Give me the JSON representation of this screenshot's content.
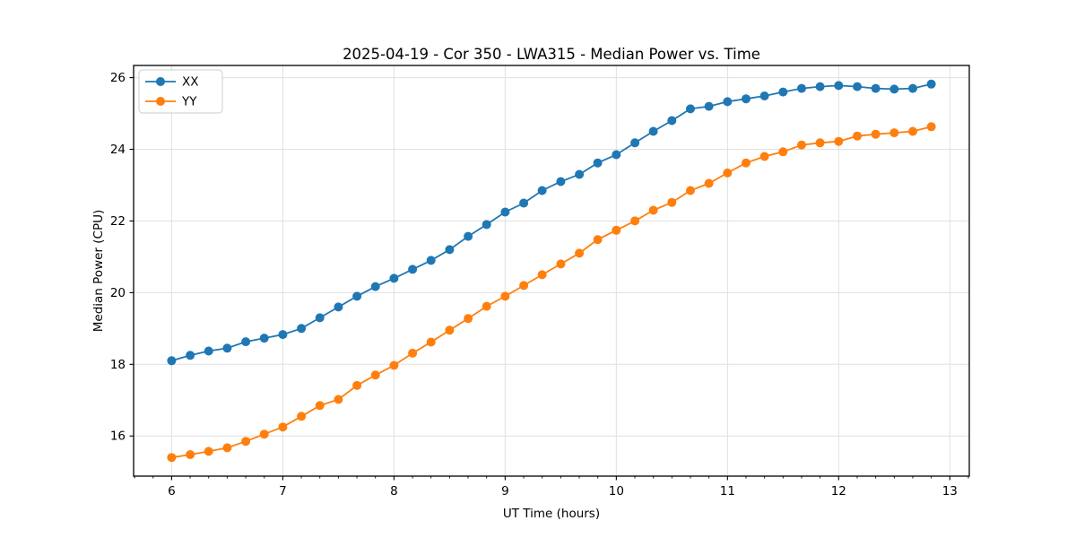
{
  "figure": {
    "background": "#ffffff",
    "plot_background": "#ffffff",
    "spine_color": "#000000",
    "grid_color": "#e0e0e0"
  },
  "chart_data": {
    "type": "line",
    "title": "2025-04-19 - Cor 350 - LWA315 - Median Power vs. Time",
    "xlabel": "UT Time (hours)",
    "ylabel": "Median Power (CPU)",
    "xlim": [
      5.658,
      13.175
    ],
    "ylim": [
      14.88,
      26.34
    ],
    "x_major_ticks": [
      6,
      7,
      8,
      9,
      10,
      11,
      12,
      13
    ],
    "y_major_ticks": [
      16,
      18,
      20,
      22,
      24,
      26
    ],
    "x_minor_step": 0.166667,
    "grid": true,
    "legend_position": "upper-left",
    "marker": "circle",
    "x": [
      6.0,
      6.167,
      6.333,
      6.5,
      6.667,
      6.833,
      7.0,
      7.167,
      7.333,
      7.5,
      7.667,
      7.833,
      8.0,
      8.167,
      8.333,
      8.5,
      8.667,
      8.833,
      9.0,
      9.167,
      9.333,
      9.5,
      9.667,
      9.833,
      10.0,
      10.167,
      10.333,
      10.5,
      10.667,
      10.833,
      11.0,
      11.167,
      11.333,
      11.5,
      11.667,
      11.833,
      12.0,
      12.167,
      12.333,
      12.5,
      12.667,
      12.833
    ],
    "series": [
      {
        "name": "XX",
        "color": "#1f77b4",
        "values": [
          18.1,
          18.25,
          18.37,
          18.45,
          18.63,
          18.73,
          18.83,
          19.0,
          19.3,
          19.6,
          19.9,
          20.17,
          20.4,
          20.65,
          20.9,
          21.2,
          21.57,
          21.9,
          22.25,
          22.5,
          22.85,
          23.1,
          23.3,
          23.62,
          23.85,
          24.18,
          24.5,
          24.8,
          25.13,
          25.2,
          25.33,
          25.41,
          25.49,
          25.6,
          25.7,
          25.75,
          25.78,
          25.75,
          25.7,
          25.68,
          25.7,
          25.82
        ]
      },
      {
        "name": "YY",
        "color": "#ff7f0e",
        "values": [
          15.4,
          15.48,
          15.57,
          15.67,
          15.85,
          16.05,
          16.25,
          16.55,
          16.85,
          17.02,
          17.41,
          17.7,
          17.97,
          18.31,
          18.62,
          18.95,
          19.28,
          19.62,
          19.9,
          20.2,
          20.5,
          20.8,
          21.1,
          21.48,
          21.74,
          22.0,
          22.3,
          22.52,
          22.85,
          23.05,
          23.34,
          23.62,
          23.8,
          23.93,
          24.12,
          24.18,
          24.22,
          24.37,
          24.42,
          24.46,
          24.5,
          24.63
        ]
      }
    ]
  }
}
